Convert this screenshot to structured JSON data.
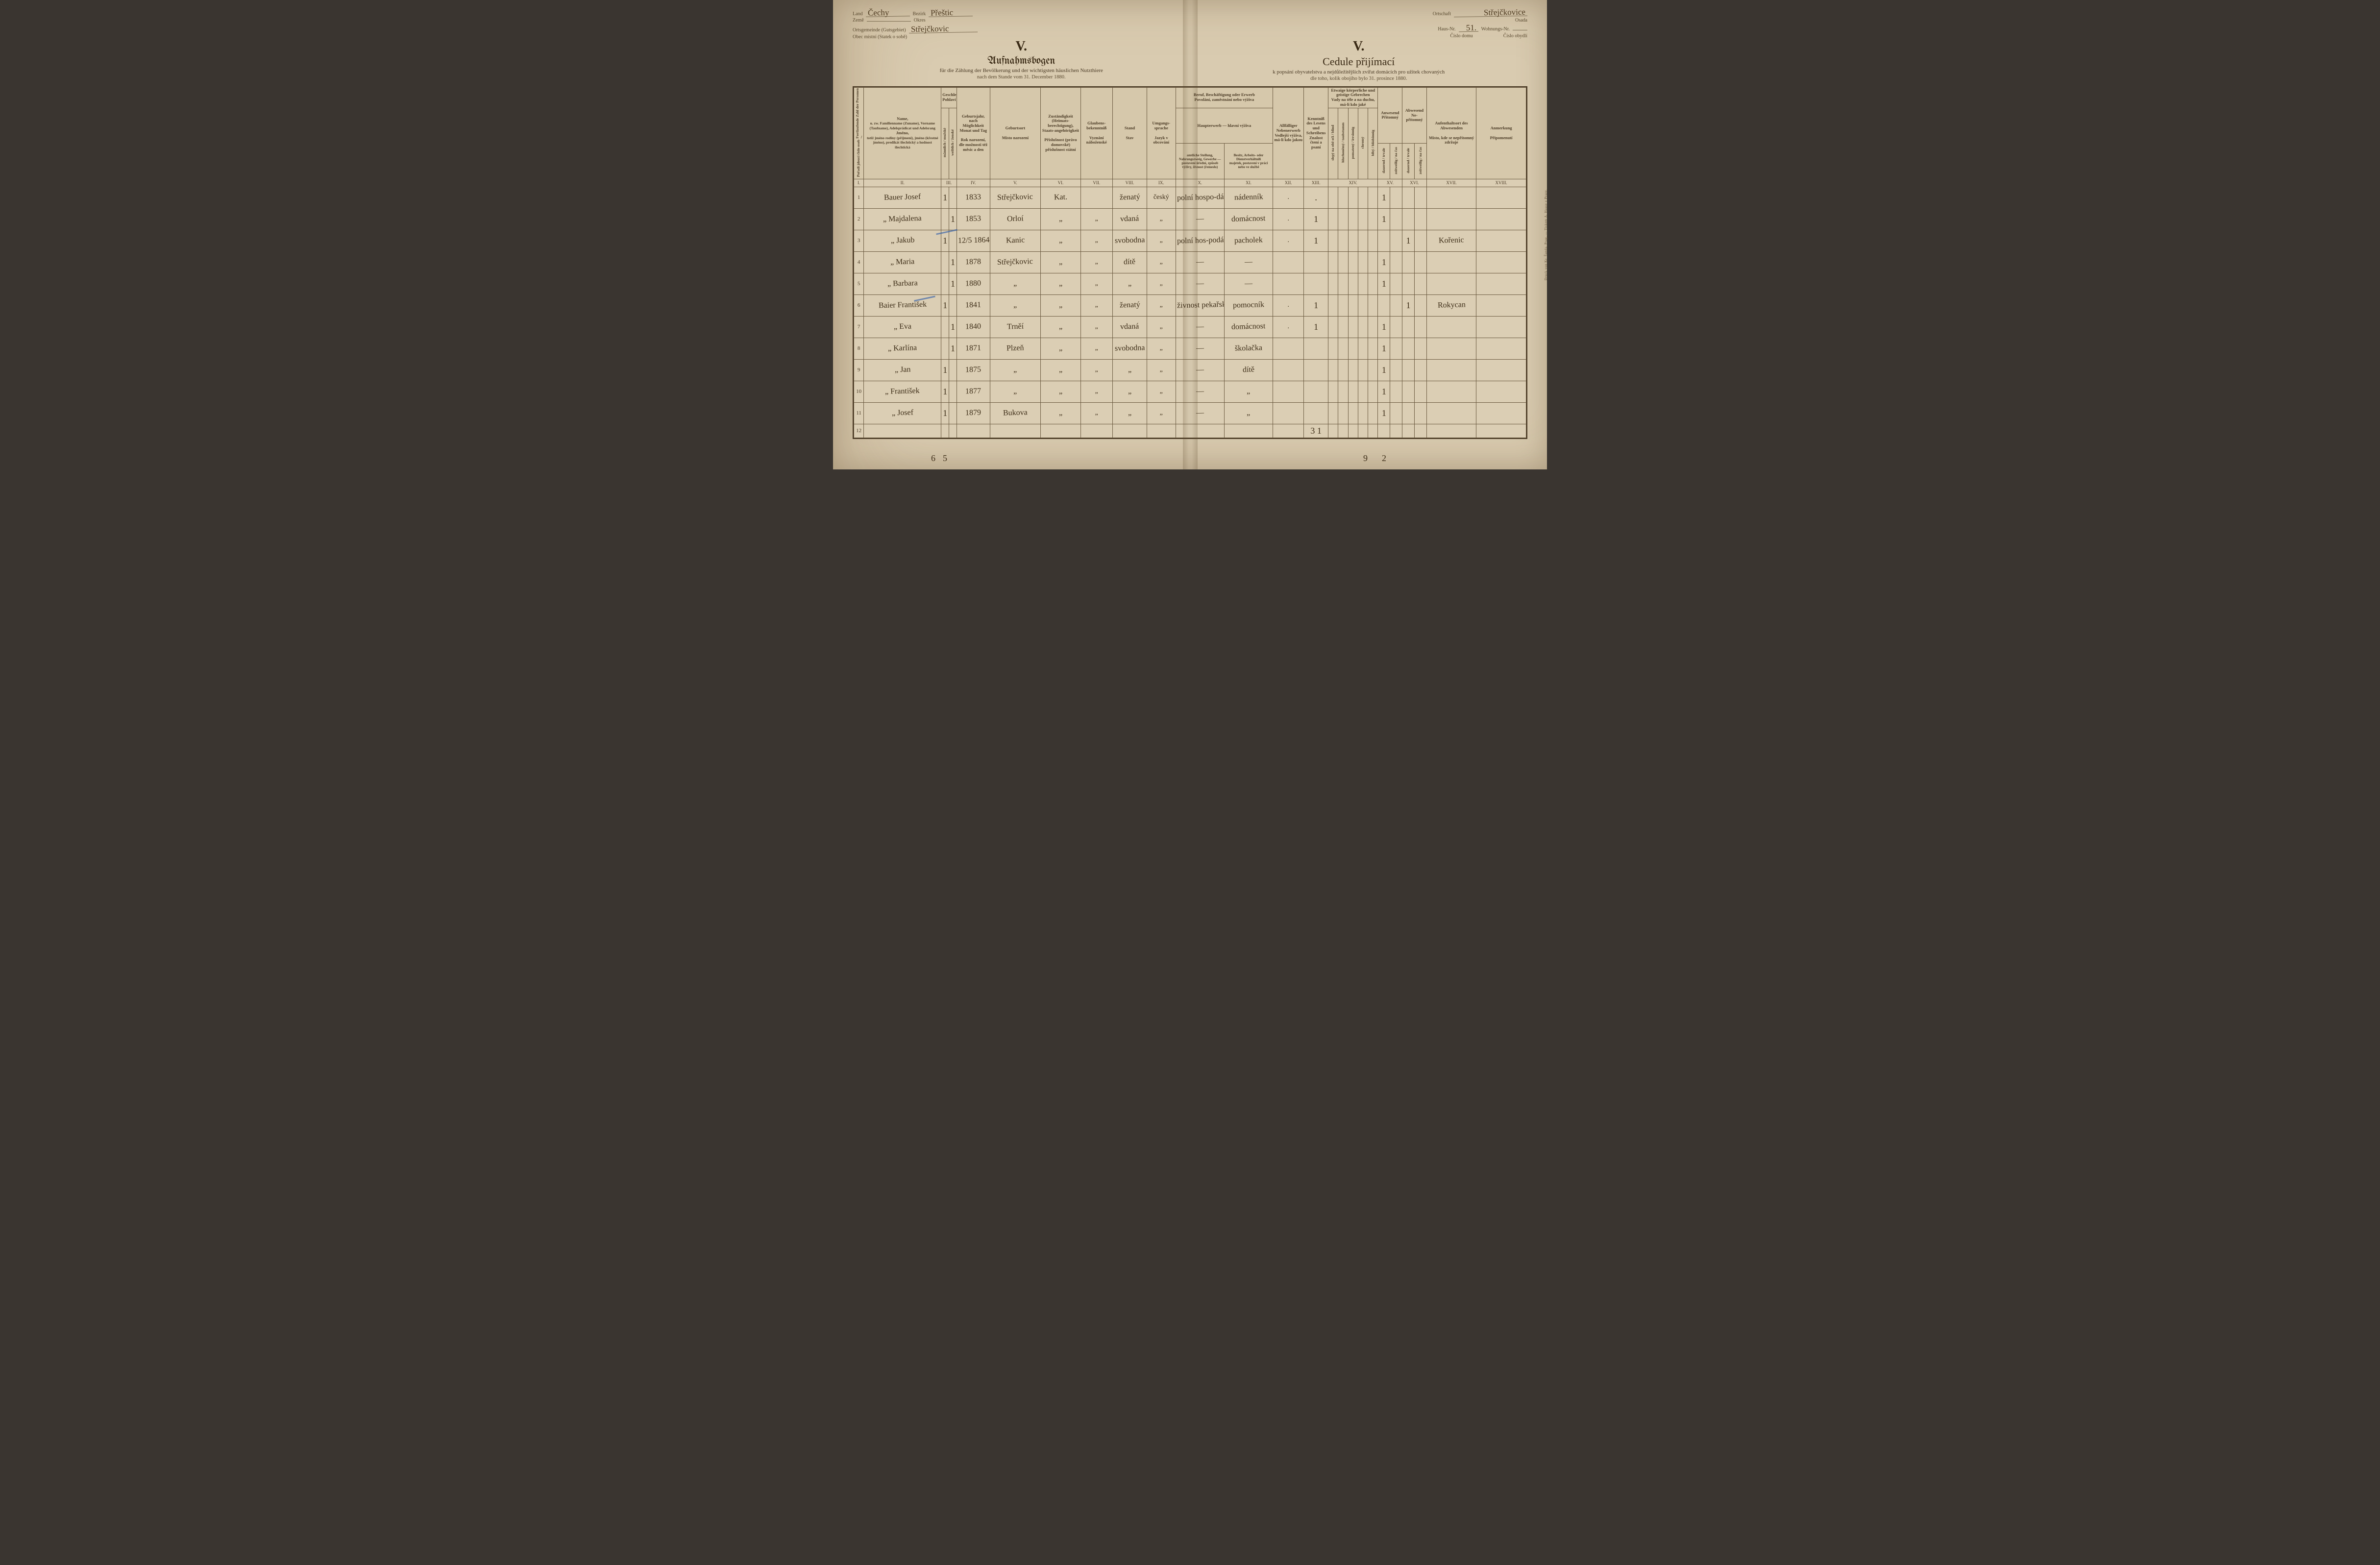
{
  "header": {
    "left": {
      "land_label_de": "Land",
      "land_value": "Čechy",
      "bezirk_label_de": "Bezirk",
      "bezirk_value": "Přeštic",
      "zeme_label": "Země",
      "okres_label": "Okres",
      "gemeinde_label_de": "Ortsgemeinde (Gutsgebiet)",
      "gemeinde_label_cz": "Obec místní (Statek o sobě)",
      "gemeinde_value": "Střejčkovic"
    },
    "right": {
      "ortschaft_label_de": "Ortschaft",
      "osada_label": "Osada",
      "ortschaft_value": "Střejčkovice",
      "hausnr_label_de": "Haus-Nr.",
      "cislo_domu_label": "Číslo domu",
      "hausnr_value": "51.",
      "wohnr_label_de": "Wohnungs-Nr.",
      "cislo_obydli_label": "Číslo obydlí",
      "wohnr_value": ""
    },
    "roman": "V.",
    "title_de": "Aufnahmsbogen",
    "subtitle_de": "für die Zählung der Bevölkerung und der wichtigsten häuslichen Nutzthiere",
    "date_de": "nach dem Stande vom 31. December 1880.",
    "title_cz": "Cedule přijímací",
    "subtitle_cz": "k popsání obyvatelstva a nejdůležitějších zvířat domácích pro užitek chovaných",
    "date_cz": "dle toho, kolik obojího bylo 31. prosince 1880."
  },
  "columns": {
    "i": "I.",
    "ii_top_de": "Name,",
    "ii_mid_de": "u. zw. Familienname (Zuname), Vorname (Taufname), Adelsprädicat und Adelsrang",
    "ii_top_cz": "Jméno,",
    "ii_mid_cz": "totiž jméno rodiny (příjmení), jméno (křestné jméno), predikát šlechtický a hodnost šlechtická",
    "ii": "II.",
    "iii_de": "Geschlecht",
    "iii_cz": "Pohlaví",
    "iii_m": "männlich / mužské",
    "iii_f": "weiblich / ženské",
    "iii": "III.",
    "iv_de": "Geburtsjahr, nach Möglichkeit Monat und Tag",
    "iv_cz": "Rok narození, dle možnosti též měsíc a den",
    "iv": "IV.",
    "v_de": "Geburtsort",
    "v_cz": "Místo narození",
    "v": "V.",
    "vi_de": "Zuständigkeit (Heimats-berechtigung), Staats-angehörigkeit",
    "vi_cz": "Příslušnost (právo domovské) příslušnost státní",
    "vi": "VI.",
    "vii_de": "Glaubens-bekenntniß",
    "vii_cz": "Vyznání náboženské",
    "vii": "VII.",
    "viii_de": "Stand",
    "viii_cz": "Stav",
    "viii": "VIII.",
    "ix_de": "Umgangs-sprache",
    "ix_cz": "Jazyk v obcování",
    "ix": "IX.",
    "x_top_de": "Beruf, Beschäftigung oder Erwerb",
    "x_top_cz": "Povolání, zaměstnání nebo výživa",
    "x_left_de": "Haupterwerb",
    "x_left_cz": "hlavní výživa",
    "x_sub_de": "amtliche Stellung, Nahrungszweig, Gewerbe — postavení úřední, způsob výživy, živnost (řemeslo)",
    "xi_de": "Besitz, Arbeits- oder Dienstverhältniß",
    "xi_cz": "majetek, postavení v práci nebo ve službě",
    "x": "X.",
    "xi": "XI.",
    "xii_de": "Allfälliger Nebenerwerb",
    "xii_cz": "Vedlejší výživa, má-li kdo jakou",
    "xii": "XII.",
    "xiii_de": "Kenntniß des Lesens und Schreibens",
    "xiii_cz": "Znalost čtení a psaní",
    "xiii": "XIII.",
    "xiv_de": "Etwaige körperliche und geistige Gebrechen",
    "xiv_cz": "Vady na těle a na duchu, má-li kdo jaké",
    "xiv": "XIV.",
    "xiv_a": "slepý na obě oči / blind",
    "xiv_b": "hluchoněmý / taubstumm",
    "xiv_c": "pomatený / irrsinnig",
    "xiv_d": "chromý",
    "xiv_e": "blbý / blödsinnig",
    "xv_de": "Anwesend",
    "xv_cz": "Přítomný",
    "xv": "XV.",
    "xv_a": "dauernd / trvale",
    "xv_b": "zeitweilig / na čas",
    "xvi_de": "Abwesend",
    "xvi_cz": "Ne-přítomný",
    "xvi": "XVI.",
    "xvi_a": "dauernd / trvale",
    "xvi_b": "zeitweilig / na čas",
    "xvii_de": "Aufenthaltsort des Abwesenden",
    "xvii_cz": "Místo, kde se nepřítomný zdržuje",
    "xvii": "XVII.",
    "xviii_de": "Anmerkung",
    "xviii_cz": "Připomenutí",
    "xviii": "XVIII.",
    "rownum_de": "Fortlaufende Zahl der Personen",
    "rownum_cz": "Pořadí jdoucí číslo osob"
  },
  "rows": [
    {
      "n": "1",
      "name": "Bauer Josef",
      "m": "1",
      "f": "",
      "year": "1833",
      "place": "Střejčkovic",
      "citiz": "Kat.",
      "relig": "",
      "status": "ženatý",
      "lang": "český",
      "occ1": "polní hospo-dářství",
      "occ2": "nádenník",
      "xii": ".",
      "xiii": ".",
      "xv": "1",
      "xvii": "",
      "xviii": ""
    },
    {
      "n": "2",
      "name": "„   Majdalena",
      "m": "",
      "f": "1",
      "year": "1853",
      "place": "Orloí",
      "citiz": "„",
      "relig": "„",
      "status": "vdaná",
      "lang": "„",
      "occ1": "—",
      "occ2": "domácnost",
      "xii": ".",
      "xiii": "1",
      "xv": "1",
      "xvii": "",
      "xviii": ""
    },
    {
      "n": "3",
      "name": "„   Jakub",
      "m": "1",
      "f": "",
      "year": "12/5 1864",
      "place": "Kanic",
      "citiz": "„",
      "relig": "„",
      "status": "svobodna",
      "lang": "„",
      "occ1": "polní hos-podářství",
      "occ2": "pacholek",
      "xii": ".",
      "xiii": "1",
      "xv": "",
      "xvi": "1",
      "xvii": "Kořenic",
      "xviii": ""
    },
    {
      "n": "4",
      "name": "„   Maria",
      "m": "",
      "f": "1",
      "year": "1878",
      "place": "Střejčkovic",
      "citiz": "„",
      "relig": "„",
      "status": "dítě",
      "lang": "„",
      "occ1": "—",
      "occ2": "—",
      "xii": "",
      "xiii": "",
      "xv": "1",
      "xvii": "",
      "xviii": ""
    },
    {
      "n": "5",
      "name": "„   Barbara",
      "m": "",
      "f": "1",
      "year": "1880",
      "place": "„",
      "citiz": "„",
      "relig": "„",
      "status": "„",
      "lang": "„",
      "occ1": "—",
      "occ2": "—",
      "xii": "",
      "xiii": "",
      "xv": "1",
      "xvii": "",
      "xviii": ""
    },
    {
      "n": "6",
      "name": "Baier František",
      "m": "1",
      "f": "",
      "year": "1841",
      "place": "„",
      "citiz": "„",
      "relig": "„",
      "status": "ženatý",
      "lang": "„",
      "occ1": "živnost pekařská",
      "occ2": "pomocník",
      "xii": ".",
      "xiii": "1",
      "xv": "",
      "xvi": "1",
      "xvii": "Rokycan",
      "xviii": ""
    },
    {
      "n": "7",
      "name": "„   Eva",
      "m": "",
      "f": "1",
      "year": "1840",
      "place": "Trněí",
      "citiz": "„",
      "relig": "„",
      "status": "vdaná",
      "lang": "„",
      "occ1": "—",
      "occ2": "domácnost",
      "xii": ".",
      "xiii": "1",
      "xv": "1",
      "xvii": "",
      "xviii": ""
    },
    {
      "n": "8",
      "name": "„   Karlína",
      "m": "",
      "f": "1",
      "year": "1871",
      "place": "Plzeň",
      "citiz": "„",
      "relig": "„",
      "status": "svobodna",
      "lang": "„",
      "occ1": "—",
      "occ2": "školačka",
      "xii": "",
      "xiii": "",
      "xv": "1",
      "xvii": "",
      "xviii": ""
    },
    {
      "n": "9",
      "name": "„   Jan",
      "m": "1",
      "f": "",
      "year": "1875",
      "place": "„",
      "citiz": "„",
      "relig": "„",
      "status": "„",
      "lang": "„",
      "occ1": "—",
      "occ2": "dítě",
      "xii": "",
      "xiii": "",
      "xv": "1",
      "xvii": "",
      "xviii": ""
    },
    {
      "n": "10",
      "name": "„   František",
      "m": "1",
      "f": "",
      "year": "1877",
      "place": "„",
      "citiz": "„",
      "relig": "„",
      "status": "„",
      "lang": "„",
      "occ1": "—",
      "occ2": "„",
      "xii": "",
      "xiii": "",
      "xv": "1",
      "xvii": "",
      "xviii": ""
    },
    {
      "n": "11",
      "name": "„   Josef",
      "m": "1",
      "f": "",
      "year": "1879",
      "place": "Bukova",
      "citiz": "„",
      "relig": "„",
      "status": "„",
      "lang": "„",
      "occ1": "—",
      "occ2": "„",
      "xii": "",
      "xiii": "",
      "xv": "1",
      "xvii": "",
      "xviii": ""
    },
    {
      "n": "12",
      "name": "",
      "m": "",
      "f": "",
      "year": "",
      "place": "",
      "citiz": "",
      "relig": "",
      "status": "",
      "lang": "",
      "occ1": "",
      "occ2": "",
      "xii": "",
      "xiii": "3 1",
      "xv": "",
      "xvii": "",
      "xviii": ""
    }
  ],
  "footer": {
    "sum_m": "6",
    "sum_f": "5",
    "sum_xv": "9",
    "sum_xvi": "2"
  },
  "side_printer": "Druck von Kr. Šanda, Prag. — Tiskem A. Haase v Praze."
}
